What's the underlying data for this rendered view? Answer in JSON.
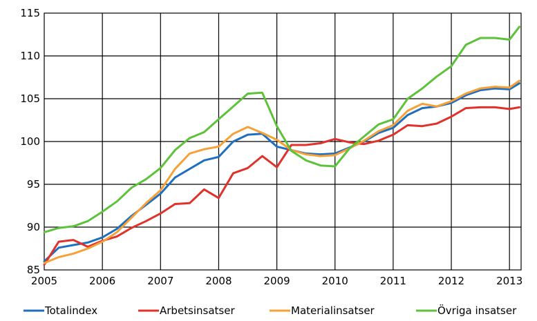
{
  "chart_data": {
    "type": "line",
    "title": "",
    "xlabel": "",
    "ylabel": "",
    "xlim": [
      2005.0,
      2013.2
    ],
    "ylim": [
      85,
      115
    ],
    "grid": true,
    "legend_position": "bottom",
    "x_ticks": [
      "2005",
      "2006",
      "2007",
      "2008",
      "2009",
      "2010",
      "2011",
      "2012",
      "2013"
    ],
    "y_ticks": [
      "85",
      "90",
      "95",
      "100",
      "105",
      "110",
      "115"
    ],
    "x": [
      2005.0,
      2005.25,
      2005.5,
      2005.75,
      2006.0,
      2006.25,
      2006.5,
      2006.75,
      2007.0,
      2007.25,
      2007.5,
      2007.75,
      2008.0,
      2008.25,
      2008.5,
      2008.75,
      2009.0,
      2009.25,
      2009.5,
      2009.75,
      2010.0,
      2010.25,
      2010.5,
      2010.75,
      2011.0,
      2011.25,
      2011.5,
      2011.75,
      2012.0,
      2012.25,
      2012.5,
      2012.75,
      2013.0,
      2013.17
    ],
    "series": [
      {
        "name": "Totalindex",
        "color": "#1f6fc0",
        "values": [
          86.0,
          87.6,
          87.9,
          88.2,
          88.8,
          89.8,
          91.3,
          92.6,
          93.9,
          95.8,
          96.8,
          97.8,
          98.2,
          100.0,
          100.8,
          100.9,
          99.4,
          99.0,
          98.6,
          98.5,
          98.6,
          99.3,
          100.0,
          101.0,
          101.6,
          103.1,
          103.9,
          104.1,
          104.5,
          105.4,
          106.0,
          106.2,
          106.1,
          106.8
        ]
      },
      {
        "name": "Arbetsinsatser",
        "color": "#e0312a",
        "values": [
          85.6,
          88.3,
          88.5,
          87.7,
          88.4,
          88.9,
          89.9,
          90.7,
          91.6,
          92.7,
          92.8,
          94.4,
          93.4,
          96.3,
          96.9,
          98.3,
          97.0,
          99.6,
          99.6,
          99.8,
          100.3,
          99.9,
          99.7,
          100.1,
          100.8,
          101.9,
          101.8,
          102.1,
          102.9,
          103.9,
          104.0,
          104.0,
          103.8,
          104.0
        ]
      },
      {
        "name": "Materialinsatser",
        "color": "#f5a137",
        "values": [
          85.8,
          86.5,
          86.9,
          87.5,
          88.3,
          89.4,
          91.1,
          92.8,
          94.3,
          96.8,
          98.6,
          99.1,
          99.4,
          100.9,
          101.7,
          101.0,
          100.2,
          99.0,
          98.5,
          98.3,
          98.4,
          99.2,
          100.1,
          101.2,
          101.9,
          103.6,
          104.4,
          104.1,
          104.7,
          105.6,
          106.2,
          106.4,
          106.3,
          107.1
        ]
      },
      {
        "name": "Övriga insatser",
        "color": "#5cc23a",
        "values": [
          89.4,
          89.9,
          90.1,
          90.7,
          91.8,
          93.0,
          94.6,
          95.6,
          96.9,
          99.0,
          100.4,
          101.1,
          102.6,
          104.1,
          105.6,
          105.7,
          101.8,
          98.9,
          97.8,
          97.2,
          97.1,
          99.2,
          100.6,
          102.0,
          102.6,
          105.0,
          106.2,
          107.6,
          108.8,
          111.3,
          112.1,
          112.1,
          111.9,
          113.4
        ]
      }
    ]
  }
}
